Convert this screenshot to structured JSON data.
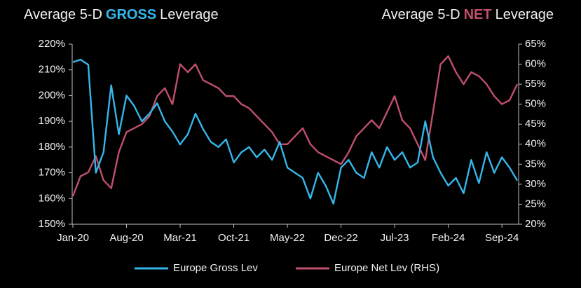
{
  "chart_data": {
    "type": "line",
    "title_left": [
      "Average 5-D",
      "GROSS",
      "Leverage"
    ],
    "title_right": [
      "Average 5-D",
      "NET",
      "Leverage"
    ],
    "categories": [
      "Jan-20",
      null,
      null,
      null,
      null,
      null,
      null,
      "Aug-20",
      null,
      null,
      null,
      null,
      null,
      null,
      "Mar-21",
      null,
      null,
      null,
      null,
      null,
      null,
      "Oct-21",
      null,
      null,
      null,
      null,
      null,
      null,
      "May-22",
      null,
      null,
      null,
      null,
      null,
      null,
      "Dec-22",
      null,
      null,
      null,
      null,
      null,
      null,
      "Jul-23",
      null,
      null,
      null,
      null,
      null,
      null,
      "Feb-24",
      null,
      null,
      null,
      null,
      null,
      null,
      "Sep-24",
      null,
      null
    ],
    "series": [
      {
        "name": "Europe Gross Lev",
        "color": "#35b7ea",
        "axis": "y",
        "values": [
          213,
          214,
          212,
          170,
          178,
          204,
          185,
          200,
          196,
          190,
          193,
          197,
          190,
          186,
          181,
          185,
          193,
          187,
          182,
          180,
          183,
          174,
          178,
          180,
          176,
          179,
          175,
          182,
          172,
          170,
          168,
          160,
          170,
          165,
          158,
          172,
          175,
          170,
          168,
          178,
          172,
          180,
          175,
          178,
          172,
          174,
          190,
          176,
          170,
          165,
          168,
          162,
          175,
          166,
          178,
          170,
          176,
          172,
          167
        ]
      },
      {
        "name": "Europe Net Lev (RHS)",
        "color": "#c0506b",
        "axis": "y2",
        "values": [
          27,
          32,
          33,
          37,
          31,
          29,
          38,
          43,
          44,
          45,
          47,
          52,
          54,
          50,
          60,
          58,
          60,
          56,
          55,
          54,
          52,
          52,
          50,
          49,
          47,
          45,
          43,
          40,
          40,
          42,
          44,
          40,
          38,
          37,
          36,
          35,
          38,
          42,
          44,
          46,
          44,
          48,
          52,
          46,
          44,
          40,
          36,
          48,
          60,
          62,
          58,
          55,
          58,
          57,
          55,
          52,
          50,
          51,
          55
        ]
      }
    ],
    "ylim": [
      150,
      220
    ],
    "yticks": [
      {
        "value": 150,
        "label": "150%"
      },
      {
        "value": 160,
        "label": "160%"
      },
      {
        "value": 170,
        "label": "170%"
      },
      {
        "value": 180,
        "label": "180%"
      },
      {
        "value": 190,
        "label": "190%"
      },
      {
        "value": 200,
        "label": "200%"
      },
      {
        "value": 210,
        "label": "210%"
      },
      {
        "value": 220,
        "label": "220%"
      }
    ],
    "y2lim": [
      20,
      65
    ],
    "y2ticks": [
      {
        "value": 20,
        "label": "20%"
      },
      {
        "value": 25,
        "label": "25%"
      },
      {
        "value": 30,
        "label": "30%"
      },
      {
        "value": 35,
        "label": "35%"
      },
      {
        "value": 40,
        "label": "40%"
      },
      {
        "value": 45,
        "label": "45%"
      },
      {
        "value": 50,
        "label": "50%"
      },
      {
        "value": 55,
        "label": "55%"
      },
      {
        "value": 60,
        "label": "60%"
      },
      {
        "value": 65,
        "label": "65%"
      }
    ],
    "legend": "bottom"
  }
}
